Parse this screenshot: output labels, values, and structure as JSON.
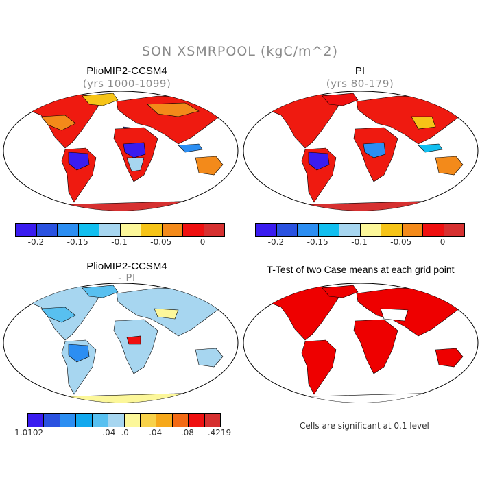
{
  "figure_title": "SON XSMRPOOL (kgC/m^2)",
  "panels": {
    "top_left": {
      "title": "PlioMIP2-CCSM4",
      "subtitle": "(yrs 1000-1099)"
    },
    "top_right": {
      "title": "PI",
      "subtitle": "(yrs 80-179)"
    },
    "bottom_left": {
      "title": "PlioMIP2-CCSM4",
      "subtitle": "- PI"
    },
    "bottom_right": {
      "title": "T-Test of two Case means at each grid point",
      "note": "Cells are significant at 0.1 level"
    }
  },
  "colorbar_abs": {
    "colors": [
      "#3a1cf0",
      "#2a52e0",
      "#2c8ef2",
      "#12bff0",
      "#a7d6f0",
      "#fcf79a",
      "#f6c417",
      "#f38a1a",
      "#ef1010",
      "#d63030"
    ],
    "ticks": [
      "-0.2",
      "-0.15",
      "-0.1",
      "-0.05",
      "0"
    ]
  },
  "colorbar_diff": {
    "colors": [
      "#3a1cf0",
      "#2a52e0",
      "#2c8ef2",
      "#12a8ee",
      "#58c0f0",
      "#a7d6f0",
      "#fcf79a",
      "#f8d24a",
      "#f6a81a",
      "#f36a14",
      "#ef1010",
      "#d63030"
    ],
    "ticks": [
      "-1.0102",
      "-.04",
      "-.0",
      ".04",
      ".08",
      ".4219"
    ]
  },
  "colors": {
    "land_abs_main": "#ef1a10",
    "land_abs_alt": "#f38a1a",
    "land_diff_main": "#a7d6f0",
    "ttest_land": "#ee0000",
    "coast": "#000000"
  }
}
